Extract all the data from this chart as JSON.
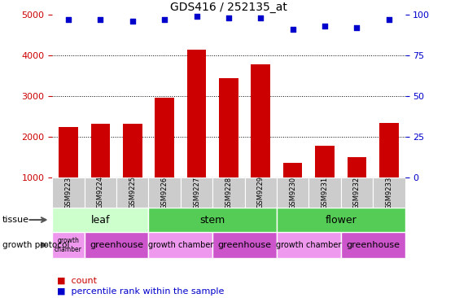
{
  "title": "GDS416 / 252135_at",
  "samples": [
    "GSM9223",
    "GSM9224",
    "GSM9225",
    "GSM9226",
    "GSM9227",
    "GSM9228",
    "GSM9229",
    "GSM9230",
    "GSM9231",
    "GSM9232",
    "GSM9233"
  ],
  "counts": [
    2250,
    2330,
    2330,
    2970,
    4150,
    3440,
    3790,
    1370,
    1790,
    1510,
    2340
  ],
  "percentiles": [
    97,
    97,
    96,
    97,
    99,
    98,
    98,
    91,
    93,
    92,
    97
  ],
  "bar_color": "#cc0000",
  "dot_color": "#0000cc",
  "ylim_left": [
    1000,
    5000
  ],
  "ylim_right": [
    0,
    100
  ],
  "yticks_left": [
    1000,
    2000,
    3000,
    4000,
    5000
  ],
  "yticks_right": [
    0,
    25,
    50,
    75,
    100
  ],
  "left_tick_color": "#cc0000",
  "right_tick_color": "#0000cc",
  "sample_bg_color": "#cccccc",
  "tissue_groups": [
    {
      "label": "leaf",
      "start": 0,
      "end": 3,
      "color": "#ccffcc"
    },
    {
      "label": "stem",
      "start": 3,
      "end": 7,
      "color": "#55cc55"
    },
    {
      "label": "flower",
      "start": 7,
      "end": 11,
      "color": "#55cc55"
    }
  ],
  "growth_groups": [
    {
      "label": "growth\nchamber",
      "start": 0,
      "end": 1,
      "color": "#ee99ee",
      "fontsize": 5.5
    },
    {
      "label": "greenhouse",
      "start": 1,
      "end": 3,
      "color": "#cc55cc",
      "fontsize": 8
    },
    {
      "label": "growth chamber",
      "start": 3,
      "end": 5,
      "color": "#ee99ee",
      "fontsize": 7
    },
    {
      "label": "greenhouse",
      "start": 5,
      "end": 7,
      "color": "#cc55cc",
      "fontsize": 8
    },
    {
      "label": "growth chamber",
      "start": 7,
      "end": 9,
      "color": "#ee99ee",
      "fontsize": 7
    },
    {
      "label": "greenhouse",
      "start": 9,
      "end": 11,
      "color": "#cc55cc",
      "fontsize": 8
    }
  ],
  "legend_count_color": "#cc0000",
  "legend_pct_color": "#0000cc"
}
